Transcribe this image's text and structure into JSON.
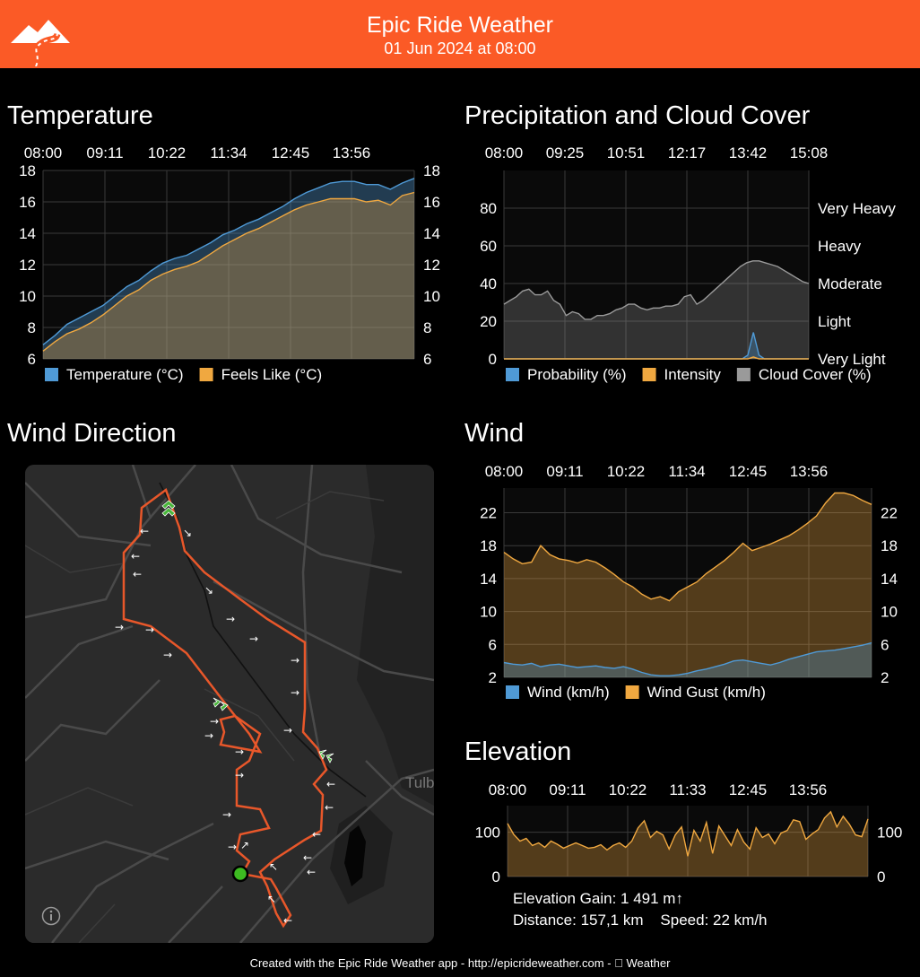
{
  "header": {
    "title": "Epic Ride Weather",
    "datetime": "01 Jun 2024 at 08:00",
    "logo_icon": "mountain-road-logo-icon",
    "accent": "#fb5a26"
  },
  "sections": {
    "temperature": "Temperature",
    "precipitation": "Precipitation and Cloud Cover",
    "wind_direction": "Wind Direction",
    "wind": "Wind",
    "elevation": "Elevation"
  },
  "chart_data": [
    {
      "id": "temperature",
      "type": "area",
      "x_ticks": [
        "08:00",
        "09:11",
        "10:22",
        "11:34",
        "12:45",
        "13:56"
      ],
      "ylim": [
        6,
        18
      ],
      "y_ticks": [
        "6",
        "8",
        "10",
        "12",
        "14",
        "16",
        "18"
      ],
      "grid": true,
      "legend": "bottom",
      "series": [
        {
          "name": "Temperature (°C)",
          "color": "#4f9ad6",
          "values": [
            6.9,
            7.5,
            8.2,
            8.6,
            9.0,
            9.4,
            10.0,
            10.6,
            11.0,
            11.6,
            12.1,
            12.4,
            12.6,
            13.0,
            13.4,
            13.9,
            14.2,
            14.6,
            14.9,
            15.3,
            15.7,
            16.2,
            16.6,
            16.9,
            17.2,
            17.3,
            17.3,
            17.1,
            17.1,
            16.8,
            17.2,
            17.5
          ]
        },
        {
          "name": "Feels Like (°C)",
          "color": "#f0a840",
          "values": [
            6.5,
            7.1,
            7.6,
            7.9,
            8.3,
            8.8,
            9.4,
            10.0,
            10.4,
            11.0,
            11.4,
            11.7,
            11.9,
            12.2,
            12.7,
            13.2,
            13.6,
            14.0,
            14.3,
            14.7,
            15.1,
            15.5,
            15.8,
            16.0,
            16.2,
            16.2,
            16.2,
            16.0,
            16.1,
            15.8,
            16.4,
            16.6
          ]
        }
      ]
    },
    {
      "id": "precipitation",
      "type": "area",
      "x_ticks": [
        "08:00",
        "09:25",
        "10:51",
        "12:17",
        "13:42",
        "15:08"
      ],
      "ylim": [
        0,
        100
      ],
      "y_ticks": [
        "0",
        "20",
        "40",
        "60",
        "80"
      ],
      "right_ticks": [
        "Very Light",
        "Light",
        "Moderate",
        "Heavy",
        "Very Heavy"
      ],
      "grid": true,
      "legend": "bottom",
      "series": [
        {
          "name": "Probability (%)",
          "color": "#4f9ad6",
          "values": [
            0,
            0,
            0,
            0,
            0,
            0,
            0,
            0,
            0,
            0,
            0,
            0,
            0,
            0,
            0,
            0,
            0,
            0,
            0,
            0,
            0,
            0,
            0,
            0,
            0,
            0,
            0,
            0,
            0,
            0,
            0,
            0,
            0,
            0,
            0,
            0,
            0,
            0,
            0,
            0,
            0,
            0,
            0,
            0,
            2,
            14,
            2,
            0,
            0,
            0,
            0,
            0,
            0,
            0,
            0,
            0
          ]
        },
        {
          "name": "Intensity",
          "color": "#f0a840",
          "values": [
            0,
            0,
            0,
            0,
            0,
            0,
            0,
            0,
            0,
            0,
            0,
            0,
            0,
            0,
            0,
            0,
            0,
            0,
            0,
            0,
            0,
            0,
            0,
            0,
            0,
            0,
            0,
            0,
            0,
            0,
            0,
            0,
            0,
            0,
            0,
            0,
            0,
            0,
            0,
            0,
            0,
            0,
            0,
            0,
            0,
            1,
            0,
            0,
            0,
            0,
            0,
            0,
            0,
            0,
            0,
            0
          ]
        },
        {
          "name": "Cloud Cover (%)",
          "color": "#9a9a9a",
          "values": [
            29,
            31,
            33,
            36,
            37,
            34,
            34,
            36,
            31,
            29,
            23,
            25,
            24,
            21,
            21,
            23,
            23,
            24,
            26,
            27,
            29,
            29,
            27,
            26,
            27,
            27,
            28,
            28,
            29,
            33,
            34,
            29,
            31,
            34,
            37,
            40,
            43,
            46,
            49,
            51,
            52,
            52,
            51,
            50,
            49,
            47,
            45,
            43,
            41,
            40
          ]
        }
      ]
    },
    {
      "id": "wind",
      "type": "area",
      "x_ticks": [
        "08:00",
        "09:11",
        "10:22",
        "11:34",
        "12:45",
        "13:56"
      ],
      "ylim": [
        2,
        25
      ],
      "y_ticks": [
        "2",
        "6",
        "10",
        "14",
        "18",
        "22"
      ],
      "grid": true,
      "legend": "bottom",
      "series": [
        {
          "name": "Wind (km/h)",
          "color": "#4f9ad6",
          "values": [
            3.8,
            3.6,
            3.5,
            3.7,
            3.3,
            3.5,
            3.6,
            3.4,
            3.2,
            3.3,
            3.4,
            3.2,
            3.1,
            3.3,
            3.0,
            2.6,
            2.3,
            2.2,
            2.2,
            2.3,
            2.5,
            2.8,
            3.0,
            3.3,
            3.6,
            4.0,
            4.1,
            3.9,
            3.7,
            3.5,
            3.8,
            4.2,
            4.5,
            4.8,
            5.1,
            5.2,
            5.3,
            5.5,
            5.7,
            5.9,
            6.2
          ]
        },
        {
          "name": "Wind Gust (km/h)",
          "color": "#f0a840",
          "values": [
            17.2,
            16.4,
            15.8,
            16.0,
            18.0,
            16.9,
            16.4,
            16.2,
            15.9,
            16.3,
            16.0,
            15.3,
            14.5,
            13.6,
            13.0,
            12.1,
            11.5,
            11.8,
            11.3,
            12.4,
            13.0,
            13.6,
            14.6,
            15.4,
            16.2,
            17.2,
            18.3,
            17.4,
            17.8,
            18.2,
            18.7,
            19.2,
            19.9,
            20.7,
            21.6,
            23.2,
            24.4,
            24.4,
            24.1,
            23.5,
            23.0
          ]
        }
      ]
    },
    {
      "id": "elevation",
      "type": "area",
      "x_ticks": [
        "08:00",
        "09:11",
        "10:22",
        "11:33",
        "12:45",
        "13:56"
      ],
      "ylim": [
        0,
        160
      ],
      "y_ticks": [
        "0",
        "100"
      ],
      "grid": true,
      "series": [
        {
          "name": "Elevation",
          "color": "#f0a840",
          "values": [
            120,
            95,
            80,
            86,
            70,
            76,
            66,
            80,
            73,
            64,
            70,
            76,
            70,
            64,
            66,
            72,
            60,
            70,
            76,
            66,
            80,
            110,
            126,
            88,
            102,
            94,
            62,
            94,
            112,
            46,
            104,
            80,
            122,
            52,
            114,
            92,
            70,
            106,
            78,
            62,
            110,
            88,
            96,
            74,
            98,
            104,
            128,
            124,
            84,
            96,
            106,
            132,
            146,
            112,
            136,
            118,
            94,
            90,
            130
          ]
        }
      ]
    }
  ],
  "map": {
    "route_color": "#e8572a",
    "start_marker_color": "#3dbb21",
    "label_tulb": "Tulb",
    "info_icon": "info-icon"
  },
  "elevation_info": {
    "gain": "Elevation Gain: 1 491 m↑",
    "distance": "Distance: 157,1 km",
    "speed": "Speed: 22 km/h"
  },
  "footer": {
    "text": "Created with the Epic Ride Weather app - http://epicrideweather.com - ",
    "apple_icon": "apple-logo-icon",
    "weather": "Weather"
  }
}
